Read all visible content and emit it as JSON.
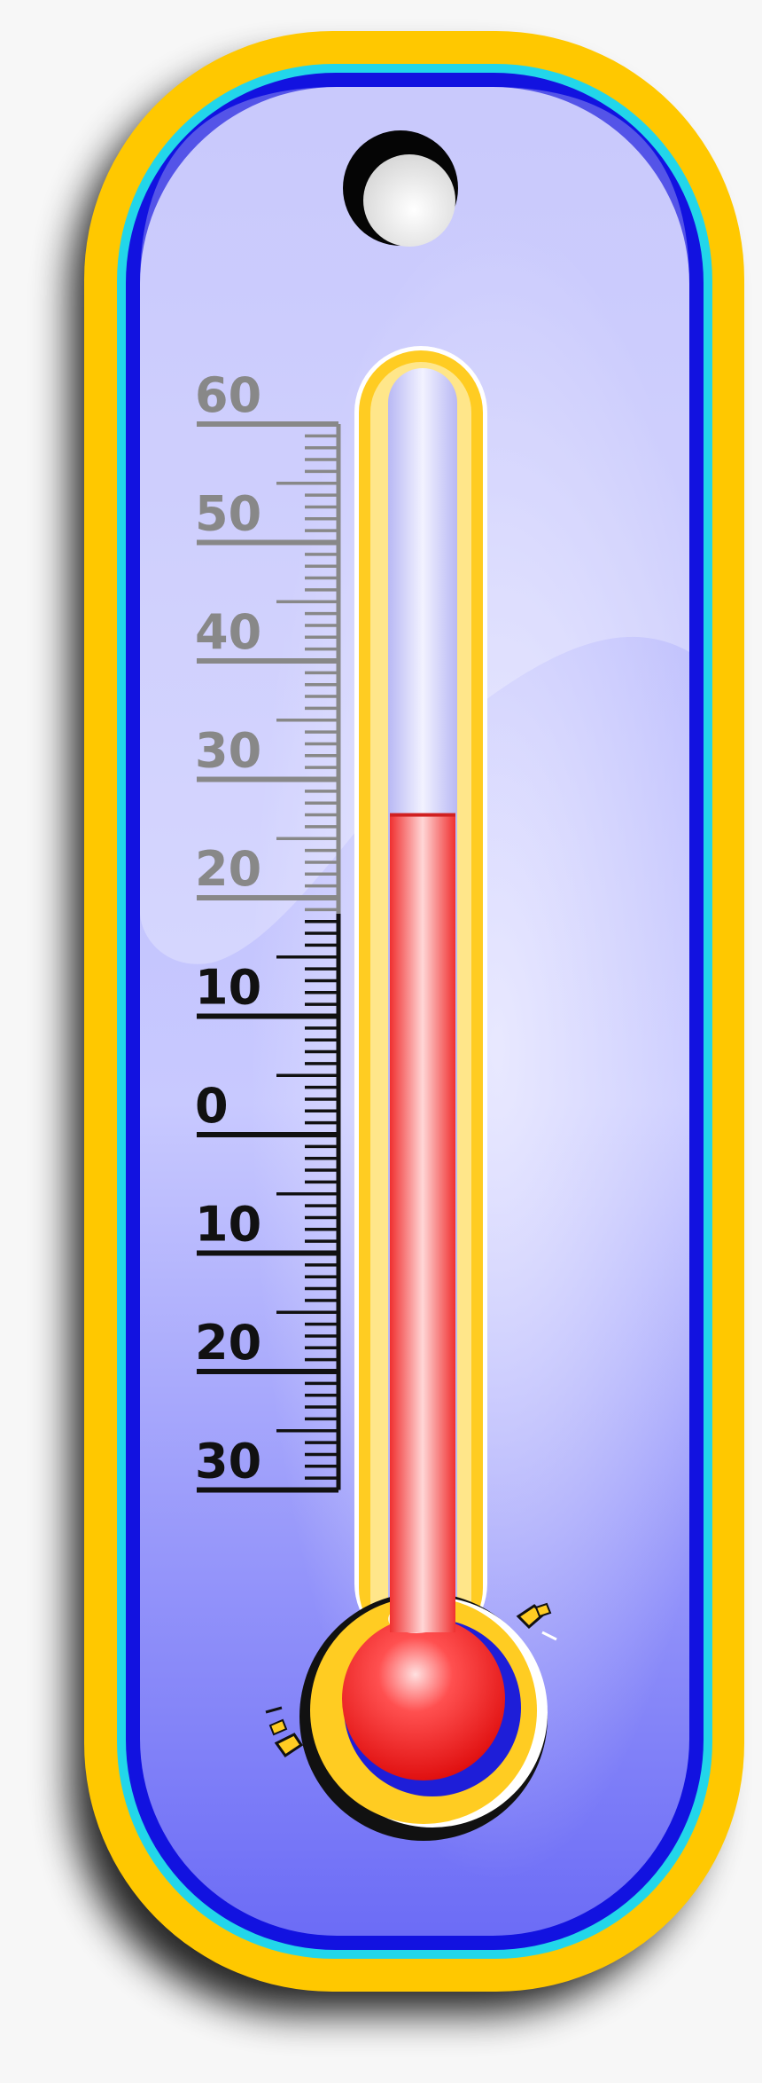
{
  "thermometer": {
    "scale_labels": [
      "60",
      "50",
      "40",
      "30",
      "20",
      "10",
      "0",
      "10",
      "20",
      "30"
    ],
    "reading": 27,
    "scale_min": -30,
    "scale_max": 60
  },
  "colors": {
    "frame_outer": "#ffc800",
    "frame_cyan": "#22d6ea",
    "frame_blue": "#1010e0",
    "panel_light": "#d4d6ff",
    "panel_dark": "#6f6ff8",
    "mercury": "#ff3030",
    "bulb_ring": "#2020d8",
    "tube_border": "#ffcc22",
    "tick_light": "#888888",
    "tick_dark": "#111111",
    "background": "#f7f7f7"
  }
}
